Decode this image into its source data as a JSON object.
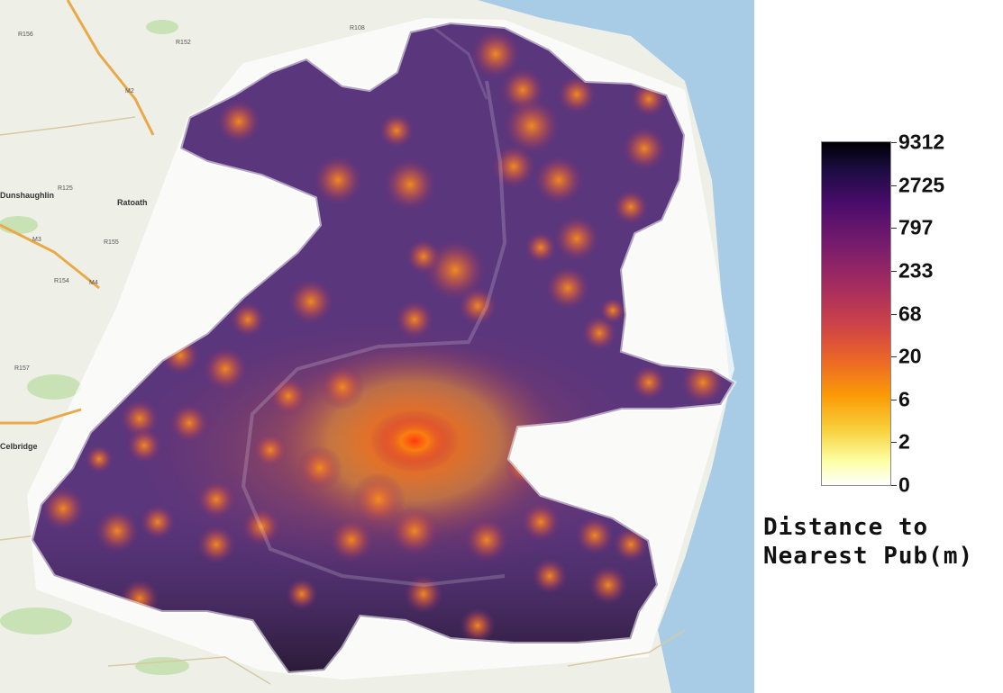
{
  "legend": {
    "title_line1": "Distance to",
    "title_line2": "Nearest Pub(m)",
    "ticks": [
      "9312",
      "2725",
      "797",
      "233",
      "68",
      "20",
      "6",
      "2",
      "0"
    ],
    "colormap": "inferno"
  },
  "map": {
    "place_labels": [
      "Dunshaughlin",
      "Ratoath",
      "Celbridge"
    ],
    "road_labels": [
      "R156",
      "R152",
      "R108",
      "M2",
      "M3",
      "R125",
      "R155",
      "R154",
      "R157",
      "M4"
    ],
    "colors": {
      "sea": "#a9cce6",
      "land": "#eef0e8",
      "park": "#c8e1b5",
      "motorway": "#e9a948"
    }
  }
}
